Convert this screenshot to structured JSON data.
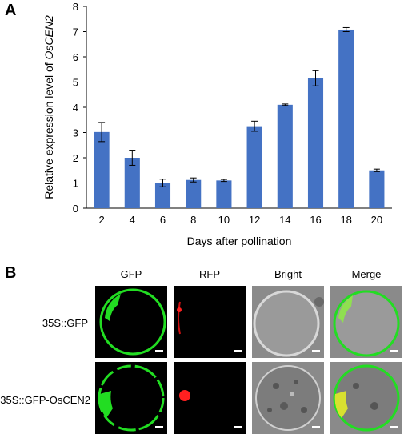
{
  "panels": {
    "a": "A",
    "b": "B"
  },
  "chart_data": {
    "type": "bar",
    "title": "",
    "xlabel": "Days after pollination",
    "ylabel": "Relative expression level of ",
    "ylabel_italic": "OsCEN2",
    "categories": [
      "2",
      "4",
      "6",
      "8",
      "10",
      "12",
      "14",
      "16",
      "18",
      "20"
    ],
    "values": [
      3.02,
      2.0,
      1.0,
      1.12,
      1.1,
      3.25,
      4.1,
      5.15,
      7.08,
      1.5
    ],
    "errors": [
      0.38,
      0.3,
      0.15,
      0.08,
      0.04,
      0.2,
      0.03,
      0.3,
      0.08,
      0.05
    ],
    "ylim": [
      0,
      8
    ],
    "yticks": [
      "0",
      "1",
      "2",
      "3",
      "4",
      "5",
      "6",
      "7",
      "8"
    ],
    "bar_color": "#4472C4",
    "grid": false
  },
  "micrograph_panel": {
    "columns": [
      "GFP",
      "RFP",
      "Bright",
      "Merge"
    ],
    "rows": [
      "35S::GFP",
      "35S::GFP-OsCEN2"
    ],
    "colors": {
      "gfp": "#22dd22",
      "rfp": "#ff2020",
      "scale_bar": "#ffffff"
    }
  }
}
